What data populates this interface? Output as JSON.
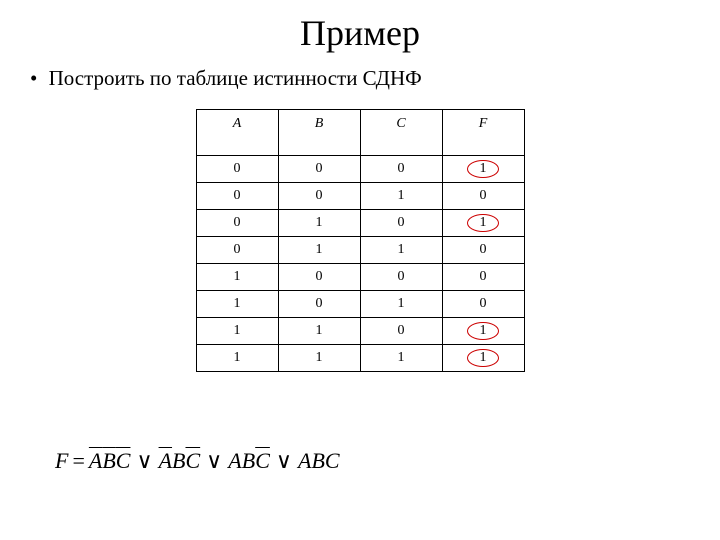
{
  "title": "Пример",
  "bullet": "Построить по таблице истинности СДНФ",
  "table": {
    "headers": [
      "A",
      "B",
      "C",
      "F"
    ],
    "rows": [
      {
        "cells": [
          "0",
          "0",
          "0",
          "1"
        ],
        "circleLast": true
      },
      {
        "cells": [
          "0",
          "0",
          "1",
          "0"
        ],
        "circleLast": false
      },
      {
        "cells": [
          "0",
          "1",
          "0",
          "1"
        ],
        "circleLast": true
      },
      {
        "cells": [
          "0",
          "1",
          "1",
          "0"
        ],
        "circleLast": false
      },
      {
        "cells": [
          "1",
          "0",
          "0",
          "0"
        ],
        "circleLast": false
      },
      {
        "cells": [
          "1",
          "0",
          "1",
          "0"
        ],
        "circleLast": false
      },
      {
        "cells": [
          "1",
          "1",
          "0",
          "1"
        ],
        "circleLast": true
      },
      {
        "cells": [
          "1",
          "1",
          "1",
          "1"
        ],
        "circleLast": true
      }
    ]
  },
  "formula": {
    "lhs": "F",
    "eq": "=",
    "or": "∨",
    "terms": [
      [
        {
          "t": "A",
          "bar": true
        },
        {
          "t": "B",
          "bar": true
        },
        {
          "t": "C",
          "bar": true
        }
      ],
      [
        {
          "t": "A",
          "bar": true
        },
        {
          "t": "B",
          "bar": false
        },
        {
          "t": "C",
          "bar": true
        }
      ],
      [
        {
          "t": "A",
          "bar": false
        },
        {
          "t": "B",
          "bar": false
        },
        {
          "t": "C",
          "bar": true
        }
      ],
      [
        {
          "t": "A",
          "bar": false
        },
        {
          "t": "B",
          "bar": false
        },
        {
          "t": "C",
          "bar": false
        }
      ]
    ]
  },
  "colors": {
    "background": "#ffffff",
    "text": "#000000",
    "circle": "#cc0000",
    "border": "#000000"
  }
}
